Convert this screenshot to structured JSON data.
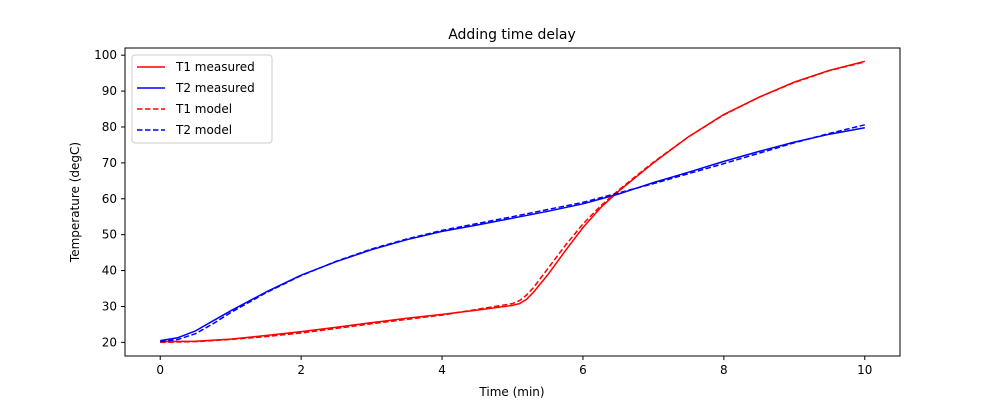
{
  "chart_data": {
    "type": "line",
    "title": "Adding time delay",
    "xlabel": "Time (min)",
    "ylabel": "Temperature (degC)",
    "xlim": [
      -0.5,
      10.5
    ],
    "ylim": [
      16.2,
      102
    ],
    "xticks": [
      0,
      2,
      4,
      6,
      8,
      10
    ],
    "yticks": [
      20,
      30,
      40,
      50,
      60,
      70,
      80,
      90,
      100
    ],
    "grid": false,
    "legend_position": "top-left",
    "series": [
      {
        "name": "T1 measured",
        "color": "#ff0000",
        "dash": "solid",
        "x": [
          0,
          0.5,
          1,
          1.5,
          2,
          2.5,
          3,
          3.5,
          4,
          4.5,
          5,
          5.1,
          5.2,
          5.3,
          5.5,
          5.75,
          6,
          6.25,
          6.5,
          6.75,
          7,
          7.5,
          8,
          8.5,
          9,
          9.5,
          10
        ],
        "y": [
          20.2,
          20.3,
          20.9,
          21.9,
          23.0,
          24.2,
          25.5,
          26.7,
          27.8,
          29.0,
          30.3,
          30.8,
          32.0,
          34.0,
          38.8,
          45.5,
          52.0,
          57.5,
          62.0,
          66.0,
          70.0,
          77.3,
          83.5,
          88.3,
          92.5,
          95.8,
          98.3
        ]
      },
      {
        "name": "T2 measured",
        "color": "#0000ff",
        "dash": "solid",
        "x": [
          0,
          0.25,
          0.5,
          0.75,
          1,
          1.5,
          2,
          2.5,
          3,
          3.5,
          4,
          4.5,
          5,
          5.5,
          6,
          6.5,
          7,
          7.5,
          8,
          8.5,
          9,
          9.5,
          10
        ],
        "y": [
          20.5,
          21.3,
          23.2,
          26.0,
          28.8,
          34.0,
          38.7,
          42.5,
          45.8,
          48.6,
          50.9,
          52.7,
          54.6,
          56.5,
          58.6,
          61.3,
          64.5,
          67.4,
          70.4,
          73.2,
          75.8,
          78.0,
          79.8
        ]
      },
      {
        "name": "T1 model",
        "color": "#ff0000",
        "dash": "dashed",
        "x": [
          0,
          0.5,
          1,
          1.5,
          2,
          2.5,
          3,
          3.5,
          4,
          4.5,
          5,
          5.1,
          5.2,
          5.3,
          5.5,
          5.75,
          6,
          6.25,
          6.5,
          6.75,
          7,
          7.5,
          8,
          8.5,
          9,
          9.5,
          10
        ],
        "y": [
          20.0,
          20.2,
          20.8,
          21.6,
          22.6,
          23.9,
          25.2,
          26.4,
          27.6,
          29.2,
          30.8,
          31.6,
          33.2,
          35.3,
          40.5,
          47.0,
          53.0,
          58.0,
          62.3,
          66.3,
          70.2,
          77.3,
          83.4,
          88.3,
          92.4,
          95.7,
          98.1
        ]
      },
      {
        "name": "T2 model",
        "color": "#0000ff",
        "dash": "dashed",
        "x": [
          0,
          0.25,
          0.5,
          0.75,
          1,
          1.5,
          2,
          2.5,
          3,
          3.5,
          4,
          4.5,
          5,
          5.5,
          6,
          6.5,
          7,
          7.5,
          8,
          8.5,
          9,
          9.5,
          10
        ],
        "y": [
          20.2,
          20.8,
          22.4,
          25.2,
          28.3,
          33.8,
          38.6,
          42.6,
          46.0,
          48.8,
          51.2,
          53.1,
          55.0,
          57.0,
          59.0,
          61.6,
          64.2,
          67.0,
          69.8,
          72.7,
          75.6,
          78.2,
          80.6
        ]
      }
    ]
  }
}
